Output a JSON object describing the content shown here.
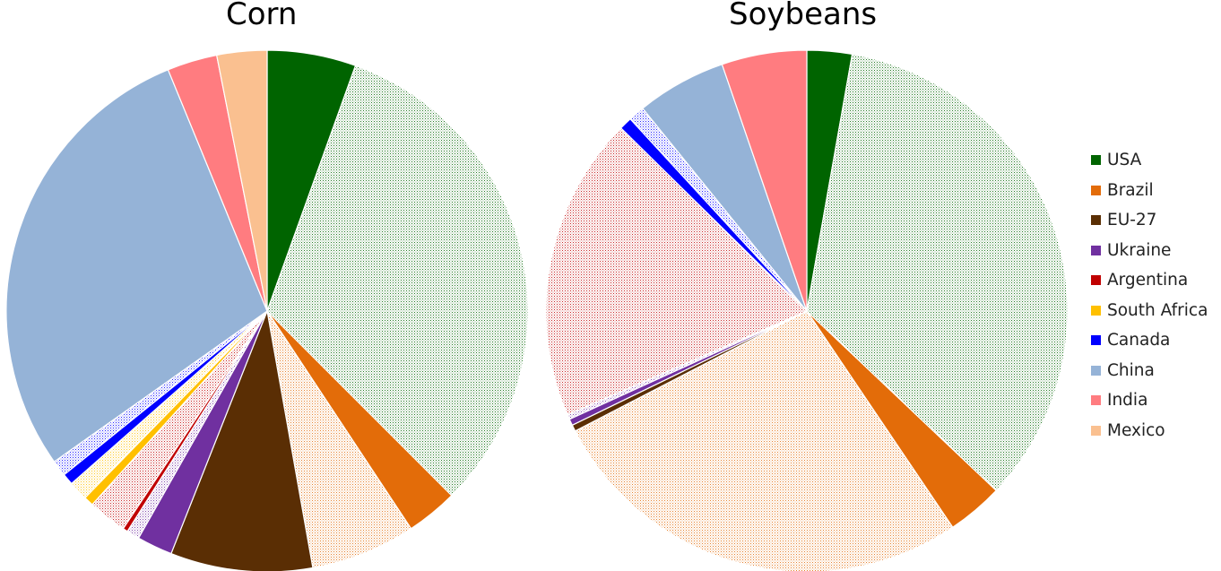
{
  "colors": {
    "USA": "#006400",
    "Brazil": "#e36c09",
    "EU-27": "#5a2e04",
    "Ukraine": "#7030a0",
    "Argentina": "#c00000",
    "South Africa": "#ffc000",
    "Canada": "#0000ff",
    "China": "#95b3d7",
    "India": "#ff7c80",
    "Mexico": "#fac090"
  },
  "legend": {
    "items": [
      {
        "label": "USA",
        "color": "#006400"
      },
      {
        "label": "Brazil",
        "color": "#e36c09"
      },
      {
        "label": "EU-27",
        "color": "#5a2e04"
      },
      {
        "label": "Ukraine",
        "color": "#7030a0"
      },
      {
        "label": "Argentina",
        "color": "#c00000"
      },
      {
        "label": "South Africa",
        "color": "#ffc000"
      },
      {
        "label": "Canada",
        "color": "#0000ff"
      },
      {
        "label": "China",
        "color": "#95b3d7"
      },
      {
        "label": "India",
        "color": "#ff7c80"
      },
      {
        "label": "Mexico",
        "color": "#fac090"
      }
    ]
  },
  "chart_data": [
    {
      "type": "pie",
      "title": "Corn",
      "start_angle_deg": 0,
      "slices": [
        {
          "country": "USA",
          "style": "solid",
          "value": 5.5
        },
        {
          "country": "USA",
          "style": "hatched",
          "value": 32.0
        },
        {
          "country": "Brazil",
          "style": "solid",
          "value": 3.2
        },
        {
          "country": "Brazil",
          "style": "hatched",
          "value": 6.5
        },
        {
          "country": "EU-27",
          "style": "solid",
          "value": 8.8
        },
        {
          "country": "EU-27",
          "style": "hatched",
          "value": 0.0
        },
        {
          "country": "Ukraine",
          "style": "solid",
          "value": 2.2
        },
        {
          "country": "Ukraine",
          "style": "hatched",
          "value": 0.8
        },
        {
          "country": "Argentina",
          "style": "solid",
          "value": 0.3
        },
        {
          "country": "Argentina",
          "style": "hatched",
          "value": 2.4
        },
        {
          "country": "South Africa",
          "style": "solid",
          "value": 0.6
        },
        {
          "country": "South Africa",
          "style": "hatched",
          "value": 1.2
        },
        {
          "country": "Canada",
          "style": "solid",
          "value": 0.7
        },
        {
          "country": "Canada",
          "style": "hatched",
          "value": 1.0
        },
        {
          "country": "China",
          "style": "solid",
          "value": 28.6
        },
        {
          "country": "India",
          "style": "solid",
          "value": 3.1
        },
        {
          "country": "Mexico",
          "style": "solid",
          "value": 3.1
        }
      ]
    },
    {
      "type": "pie",
      "title": "Soybeans",
      "start_angle_deg": 0,
      "slices": [
        {
          "country": "USA",
          "style": "solid",
          "value": 2.8
        },
        {
          "country": "USA",
          "style": "hatched",
          "value": 34.5
        },
        {
          "country": "Brazil",
          "style": "solid",
          "value": 3.5
        },
        {
          "country": "Brazil",
          "style": "hatched",
          "value": 27.0
        },
        {
          "country": "EU-27",
          "style": "solid",
          "value": 0.4
        },
        {
          "country": "Ukraine",
          "style": "solid",
          "value": 0.4
        },
        {
          "country": "Ukraine",
          "style": "hatched",
          "value": 0.3
        },
        {
          "country": "Argentina",
          "style": "hatched",
          "value": 19.0
        },
        {
          "country": "Canada",
          "style": "solid",
          "value": 0.8
        },
        {
          "country": "Canada",
          "style": "hatched",
          "value": 1.0
        },
        {
          "country": "China",
          "style": "solid",
          "value": 5.6
        },
        {
          "country": "India",
          "style": "solid",
          "value": 5.3
        }
      ]
    }
  ]
}
